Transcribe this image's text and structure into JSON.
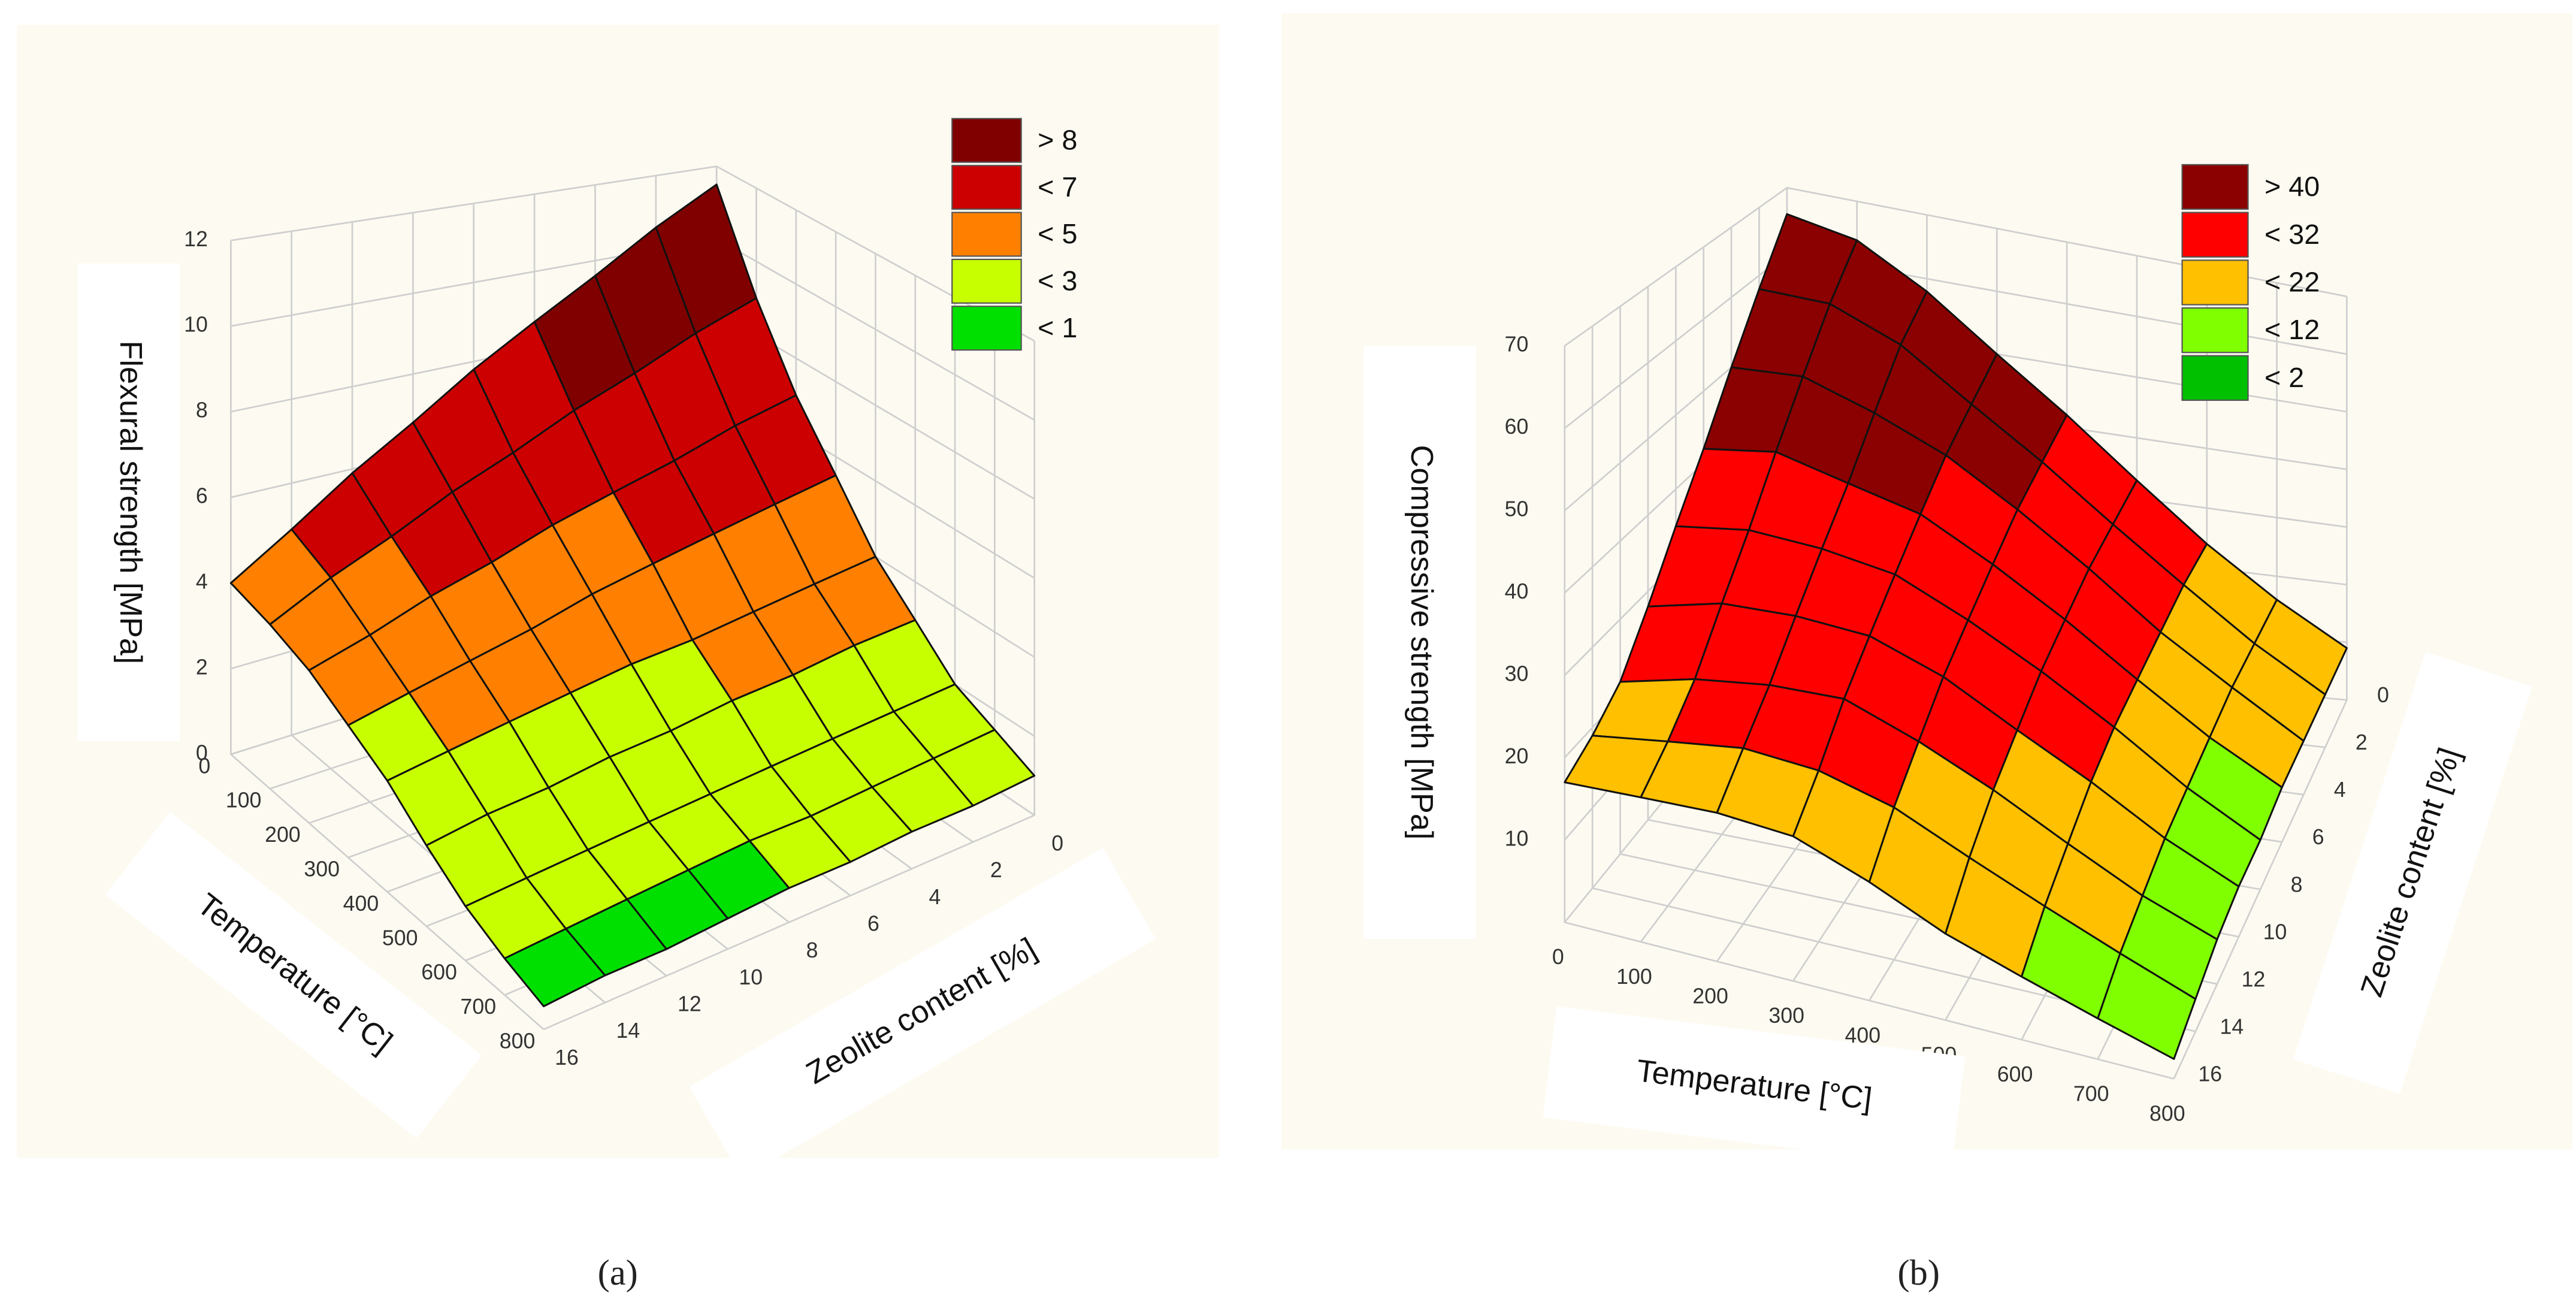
{
  "chart_data": [
    {
      "type": "surface",
      "caption": "(a)",
      "xlabel": "Temperature [°C]",
      "ylabel": "Zeolite content [%]",
      "zlabel": "Flexural strength [MPa]",
      "x": [
        0,
        100,
        200,
        300,
        400,
        500,
        600,
        700,
        800
      ],
      "y": [
        0,
        2,
        4,
        6,
        8,
        10,
        12,
        14,
        16
      ],
      "z": [
        [
          11.5,
          10.6,
          9.6,
          8.7,
          7.8,
          6.8,
          5.9,
          4.9,
          4
        ],
        [
          9,
          8.4,
          7.7,
          7.1,
          6.4,
          5.8,
          5.1,
          4.5,
          3.8
        ],
        [
          7,
          6.6,
          6.1,
          5.7,
          5.3,
          4.8,
          4.4,
          3.9,
          3.5
        ],
        [
          5.5,
          5.2,
          4.9,
          4.6,
          4.3,
          3.9,
          3.6,
          3.3,
          3
        ],
        [
          4,
          3.8,
          3.6,
          3.4,
          3.3,
          3.1,
          2.9,
          2.7,
          2.5
        ],
        [
          3,
          2.9,
          2.7,
          2.6,
          2.4,
          2.3,
          2.1,
          2,
          1.8
        ],
        [
          2,
          1.9,
          1.8,
          1.7,
          1.6,
          1.5,
          1.4,
          1.3,
          1.2
        ],
        [
          1.5,
          1.4,
          1.3,
          1.2,
          1.2,
          1.1,
          1,
          0.9,
          0.8
        ],
        [
          1,
          0.9,
          0.9,
          0.8,
          0.8,
          0.7,
          0.6,
          0.6,
          0.5
        ]
      ],
      "xlim": [
        0,
        800
      ],
      "ylim": [
        0,
        16
      ],
      "zlim": [
        0,
        12
      ],
      "xticks": [
        0,
        100,
        200,
        300,
        400,
        500,
        600,
        700,
        800
      ],
      "yticks": [
        0,
        2,
        4,
        6,
        8,
        10,
        12,
        14,
        16
      ],
      "zticks": [
        0,
        2,
        4,
        6,
        8,
        10,
        12
      ],
      "grid": true,
      "legend": [
        {
          "value": 8,
          "label": "> 8",
          "color": "#800000"
        },
        {
          "value": 7,
          "label": "< 7",
          "color": "#cc0000"
        },
        {
          "value": 5,
          "label": "< 5",
          "color": "#ff8000"
        },
        {
          "value": 3,
          "label": "< 3",
          "color": "#c8ff00"
        },
        {
          "value": 1,
          "label": "< 1",
          "color": "#00e000"
        }
      ]
    },
    {
      "type": "surface",
      "caption": "(b)",
      "xlabel": "Temperature [°C]",
      "ylabel": "Zeolite content [%]",
      "zlabel": "Compressive strength [MPa]",
      "x": [
        0,
        100,
        200,
        300,
        400,
        500,
        600,
        700,
        800
      ],
      "y": [
        0,
        2,
        4,
        6,
        8,
        10,
        12,
        14,
        16
      ],
      "z": [
        [
          66,
          58,
          50,
          42,
          35,
          28,
          22,
          19,
          17
        ],
        [
          64,
          58,
          51,
          44,
          37,
          31,
          25,
          21,
          18
        ],
        [
          58,
          54,
          48,
          42,
          37,
          32,
          27,
          23,
          19
        ],
        [
          50,
          47,
          44,
          40,
          36,
          32,
          28,
          23,
          19
        ],
        [
          42,
          40,
          38,
          35,
          32,
          29,
          25,
          21,
          16
        ],
        [
          33,
          32,
          31,
          29,
          27,
          24,
          21,
          17,
          12
        ],
        [
          24,
          24,
          23,
          22,
          21,
          19,
          16,
          13,
          9
        ],
        [
          16,
          16,
          16,
          15,
          14,
          13,
          11,
          9,
          6
        ],
        [
          9,
          9,
          9,
          9,
          8,
          8,
          7,
          5,
          3
        ]
      ],
      "xlim": [
        0,
        800
      ],
      "ylim": [
        0,
        16
      ],
      "zlim": [
        0,
        70
      ],
      "xticks": [
        0,
        100,
        200,
        300,
        400,
        500,
        600,
        700,
        800
      ],
      "yticks": [
        0,
        2,
        4,
        6,
        8,
        10,
        12,
        14,
        16
      ],
      "zticks": [
        10,
        20,
        30,
        40,
        50,
        60,
        70
      ],
      "grid": true,
      "legend": [
        {
          "value": 40,
          "label": "> 40",
          "color": "#8b0000"
        },
        {
          "value": 32,
          "label": "< 32",
          "color": "#ff0000"
        },
        {
          "value": 22,
          "label": "< 22",
          "color": "#ffc000"
        },
        {
          "value": 12,
          "label": "< 12",
          "color": "#80ff00"
        },
        {
          "value": 2,
          "label": "< 2",
          "color": "#00c000"
        }
      ]
    }
  ]
}
